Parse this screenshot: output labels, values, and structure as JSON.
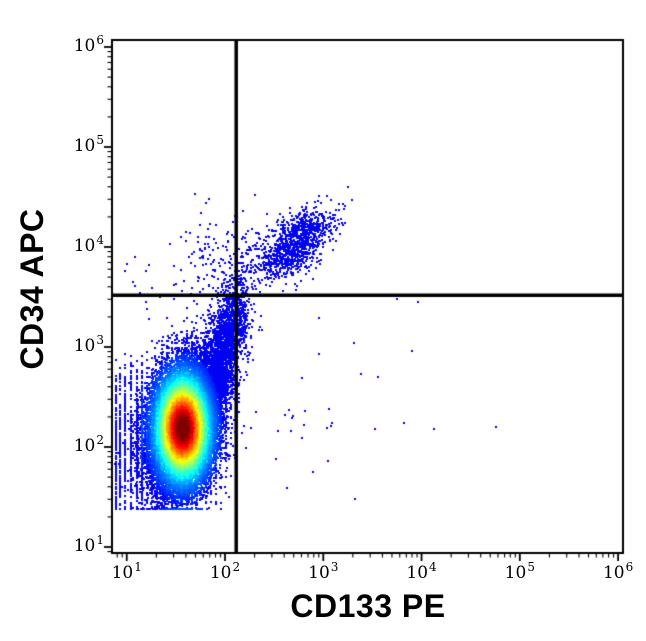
{
  "figure": {
    "background": "#ffffff",
    "border_color": "#000000"
  },
  "chart_data": {
    "type": "scatter",
    "variant": "flow_cytometry_pseudocolor_density_dot_plot",
    "title": "",
    "xlabel": "CD133 PE",
    "ylabel": "CD34 APC",
    "x_scale": "log",
    "y_scale": "log",
    "x_range_log10": [
      0.85,
      6.05
    ],
    "y_range_log10": [
      0.94,
      6.07
    ],
    "tick_label_base": "10",
    "x_tick_exponents": [
      1,
      2,
      3,
      4,
      5,
      6
    ],
    "y_tick_exponents": [
      1,
      2,
      3,
      4,
      5,
      6
    ],
    "x_tick_values": [
      10,
      100,
      1000,
      10000,
      100000,
      1000000
    ],
    "y_tick_values": [
      10,
      100,
      1000,
      10000,
      100000,
      1000000
    ],
    "grid": false,
    "legend": null,
    "axis_color": "#000000",
    "dot_color": "#0202f2",
    "colormap": "jet",
    "seed": 7,
    "quadrant_gates": {
      "x_value": 130,
      "y_value": 3300,
      "line_color": "#000000",
      "line_width": 3.5
    },
    "density_color_model": {
      "center_log10": [
        1.56,
        2.2
      ],
      "sigma_log10": [
        0.16,
        0.3
      ],
      "t_offset": 0.14,
      "t_gain": 0.94,
      "t_floor": 0.034,
      "blue_below": 0.15
    },
    "populations": [
      {
        "name": "cd34neg_cd133neg_core",
        "n": 40000,
        "center_log10": [
          1.56,
          2.2
        ],
        "sigma_log10": [
          0.16,
          0.3
        ],
        "rho": 0.18,
        "clamp_low_log10": [
          0.87,
          1.39
        ],
        "quantize_x": {
          "fraction": 0.35,
          "step": 0.05
        },
        "quantize_y": {
          "fraction": 0.2,
          "step": 0.05
        },
        "color": "density"
      },
      {
        "name": "left_edge_discrete_columns",
        "n": 850,
        "columns_log10": [
          0.88,
          0.925,
          0.975,
          1.03,
          1.09,
          1.15
        ],
        "y_center_log10": 2.05,
        "y_sigma_log10": 0.42,
        "clamp_low_log10": [
          null,
          1.39
        ],
        "bounds_log10": {
          "y": [
            null,
            2.95
          ]
        },
        "pileup_color_boost": 0.85,
        "color": "density"
      },
      {
        "name": "bridge_tail_to_double_positive",
        "n": 2400,
        "center_log10": [
          1.97,
          2.95
        ],
        "sigma_log10": [
          0.13,
          0.38
        ],
        "rho": 0.65,
        "color": "density"
      },
      {
        "name": "cd34pos_cd133pos_cluster",
        "n": 1150,
        "center_log10": [
          2.71,
          4.05
        ],
        "sigma_log10": [
          0.18,
          0.17
        ],
        "rho": 0.55,
        "color": "dot"
      },
      {
        "name": "cd34pos_cd133neg_scatter",
        "n": 120,
        "center_log10": [
          1.85,
          3.9
        ],
        "sigma_log10": [
          0.22,
          0.25
        ],
        "rho": 0.1,
        "color": "dot"
      },
      {
        "name": "upper_left_edge_dots",
        "n": 14,
        "center_log10": [
          1.12,
          3.6
        ],
        "sigma_log10": [
          0.07,
          0.13
        ],
        "rho": 0,
        "color": "dot"
      },
      {
        "name": "cd133pos_cd34neg_scatter",
        "n": 38,
        "center_log10": [
          2.78,
          2.4
        ],
        "sigma_log10": [
          0.5,
          0.5
        ],
        "rho": 0,
        "bounds_log10": {
          "x": [
            2.2,
            4.9
          ],
          "y": [
            1.45,
            3.4
          ]
        },
        "color": "dot"
      }
    ],
    "outlier_points_log10": [
      [
        1.68,
        4.54
      ],
      [
        4.75,
        2.21
      ],
      [
        4.12,
        2.19
      ],
      [
        3.74,
        3.49
      ],
      [
        3.95,
        3.46
      ],
      [
        3.3,
        3.05
      ],
      [
        3.89,
        2.97
      ],
      [
        2.62,
        1.6
      ],
      [
        2.95,
        3.3
      ]
    ]
  }
}
